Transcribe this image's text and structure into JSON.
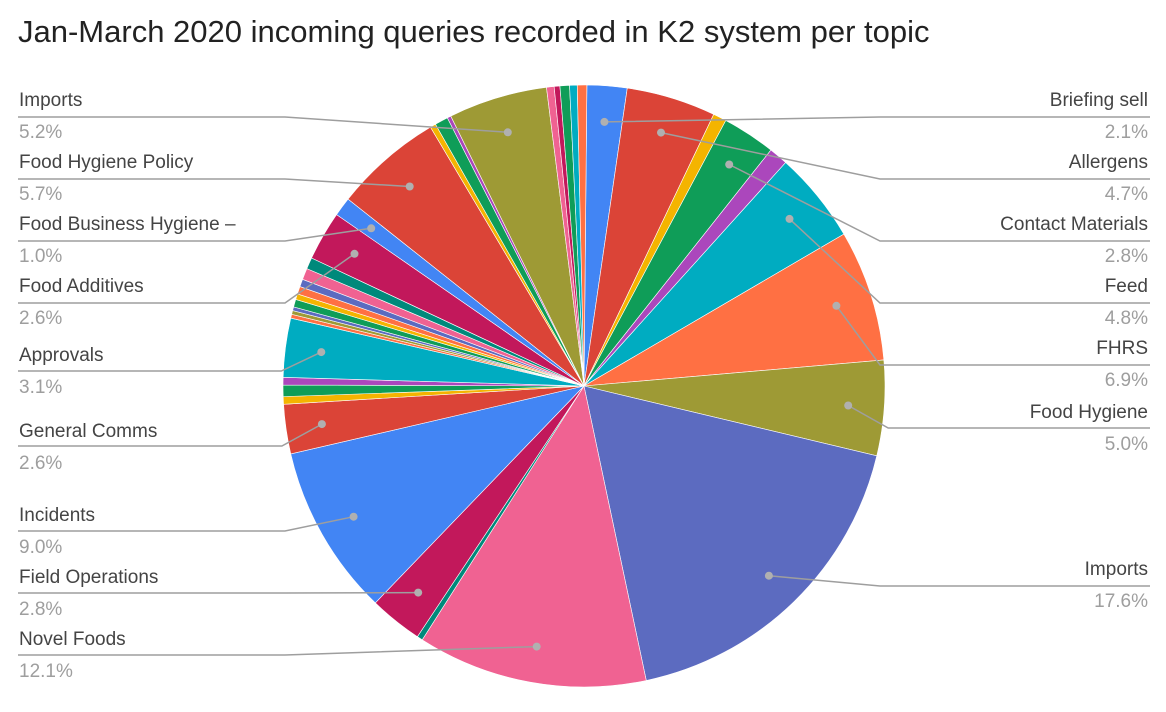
{
  "chart_data": {
    "type": "pie",
    "title": "Jan-March 2020 incoming queries recorded in K2 system per topic",
    "labeled_slices": [
      {
        "label": "Briefing sell",
        "value": 2.1,
        "display": "2.1%",
        "color": "#4285f4"
      },
      {
        "label": "Allergens",
        "value": 4.7,
        "display": "4.7%",
        "color": "#db4437"
      },
      {
        "label": "Contact Materials",
        "value": 2.8,
        "display": "2.8%",
        "color": "#0f9d58"
      },
      {
        "label": "Feed",
        "value": 4.8,
        "display": "4.8%",
        "color": "#00acc1"
      },
      {
        "label": "FHRS",
        "value": 6.9,
        "display": "6.9%",
        "color": "#ff7043"
      },
      {
        "label": "Food Hygiene",
        "value": 5.0,
        "display": "5.0%",
        "color": "#9e9a35"
      },
      {
        "label": "Imports",
        "value": 17.6,
        "display": "17.6%",
        "color": "#5c6bc0"
      },
      {
        "label": "Novel Foods",
        "value": 12.1,
        "display": "12.1%",
        "color": "#f06292"
      },
      {
        "label": "Field Operations",
        "value": 2.8,
        "display": "2.8%",
        "color": "#c2185b"
      },
      {
        "label": "Incidents",
        "value": 9.0,
        "display": "9.0%",
        "color": "#4285f4"
      },
      {
        "label": "General Comms",
        "value": 2.6,
        "display": "2.6%",
        "color": "#db4437"
      },
      {
        "label": "Approvals",
        "value": 3.1,
        "display": "3.1%",
        "color": "#00acc1"
      },
      {
        "label": "Food Additives",
        "value": 2.6,
        "display": "2.6%",
        "color": "#c2185b"
      },
      {
        "label": "Food Business Hygiene –",
        "value": 1.0,
        "display": "1.0%",
        "color": "#4285f4"
      },
      {
        "label": "Food Hygiene Policy",
        "value": 5.7,
        "display": "5.7%",
        "color": "#db4437"
      },
      {
        "label": "Imports",
        "value": 5.2,
        "display": "5.2%",
        "color": "#9e9a35"
      }
    ],
    "slices": [
      {
        "value": 2.1,
        "color": "#4285f4",
        "label_index": 0
      },
      {
        "value": 4.7,
        "color": "#db4437",
        "label_index": 1
      },
      {
        "value": 0.7,
        "color": "#f4b400"
      },
      {
        "value": 2.8,
        "color": "#0f9d58",
        "label_index": 2
      },
      {
        "value": 1.0,
        "color": "#ab47bc"
      },
      {
        "value": 4.8,
        "color": "#00acc1",
        "label_index": 3
      },
      {
        "value": 6.9,
        "color": "#ff7043",
        "label_index": 4
      },
      {
        "value": 5.0,
        "color": "#9e9a35",
        "label_index": 5
      },
      {
        "value": 17.6,
        "color": "#5c6bc0",
        "label_index": 6
      },
      {
        "value": 12.1,
        "color": "#f06292",
        "label_index": 7
      },
      {
        "value": 0.3,
        "color": "#00897b"
      },
      {
        "value": 2.8,
        "color": "#c2185b",
        "label_index": 8
      },
      {
        "value": 9.0,
        "color": "#4285f4",
        "label_index": 9
      },
      {
        "value": 2.6,
        "color": "#db4437",
        "label_index": 10
      },
      {
        "value": 0.4,
        "color": "#f4b400"
      },
      {
        "value": 0.6,
        "color": "#0f9d58"
      },
      {
        "value": 0.4,
        "color": "#ab47bc"
      },
      {
        "value": 3.1,
        "color": "#00acc1",
        "label_index": 11
      },
      {
        "value": 0.2,
        "color": "#ff7043"
      },
      {
        "value": 0.2,
        "color": "#9e9a35"
      },
      {
        "value": 0.2,
        "color": "#5c6bc0"
      },
      {
        "value": 0.4,
        "color": "#0f9d58"
      },
      {
        "value": 0.3,
        "color": "#f4b400"
      },
      {
        "value": 0.4,
        "color": "#ff7043"
      },
      {
        "value": 0.4,
        "color": "#5c6bc0"
      },
      {
        "value": 0.6,
        "color": "#f06292"
      },
      {
        "value": 0.6,
        "color": "#00897b"
      },
      {
        "value": 2.6,
        "color": "#c2185b",
        "label_index": 12
      },
      {
        "value": 1.0,
        "color": "#4285f4",
        "label_index": 13
      },
      {
        "value": 5.7,
        "color": "#db4437",
        "label_index": 14
      },
      {
        "value": 0.3,
        "color": "#f4b400"
      },
      {
        "value": 0.7,
        "color": "#0f9d58"
      },
      {
        "value": 0.2,
        "color": "#ab47bc"
      },
      {
        "value": 5.2,
        "color": "#9e9a35",
        "label_index": 15
      },
      {
        "value": 0.4,
        "color": "#f06292"
      },
      {
        "value": 0.3,
        "color": "#c2185b"
      },
      {
        "value": 0.5,
        "color": "#0f9d58"
      },
      {
        "value": 0.4,
        "color": "#00acc1"
      },
      {
        "value": 0.5,
        "color": "#ff7043"
      }
    ]
  }
}
